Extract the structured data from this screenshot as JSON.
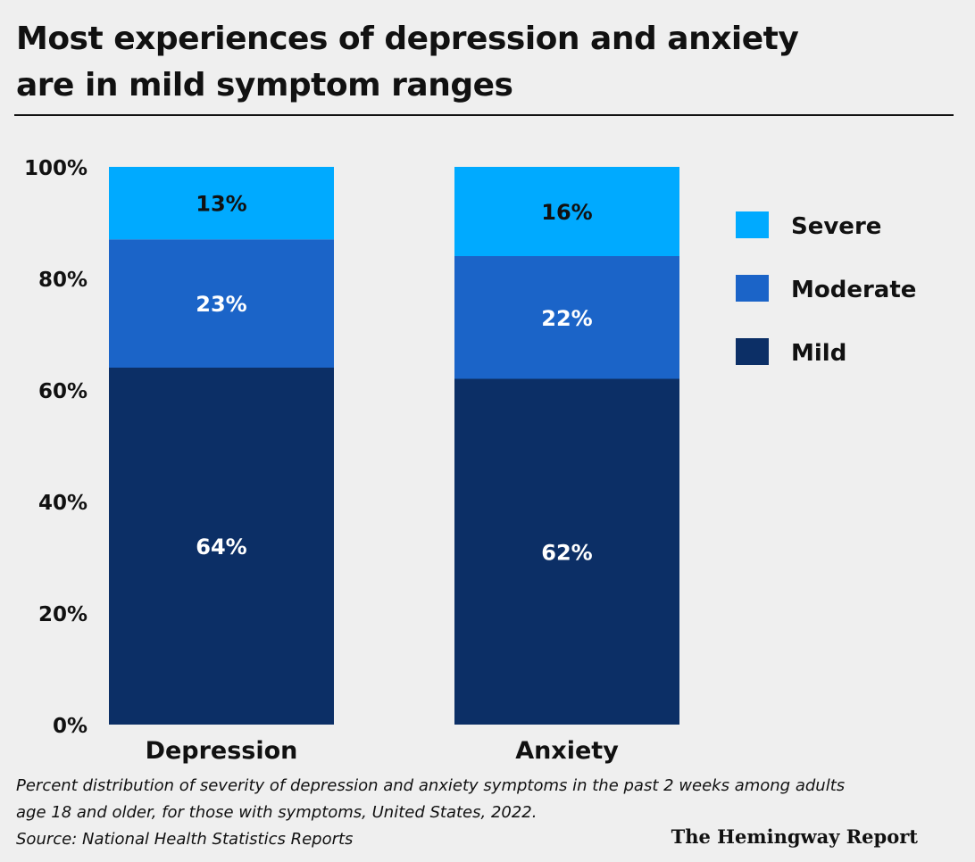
{
  "header": {
    "title_line1": "Most experiences of depression and anxiety",
    "title_line2": "are in mild symptom ranges"
  },
  "chart_data": {
    "type": "bar",
    "stacked": true,
    "title": "Most experiences of depression and anxiety are in mild symptom ranges",
    "categories": [
      "Depression",
      "Anxiety"
    ],
    "series": [
      {
        "name": "Mild",
        "values": [
          64,
          62
        ],
        "color": "#0c2f66",
        "label_color": "#ffffff"
      },
      {
        "name": "Moderate",
        "values": [
          23,
          22
        ],
        "color": "#1b64c8",
        "label_color": "#ffffff"
      },
      {
        "name": "Severe",
        "values": [
          13,
          16
        ],
        "color": "#00aaff",
        "label_color": "#111111"
      }
    ],
    "data_labels": [
      [
        "64%",
        "62%"
      ],
      [
        "23%",
        "22%"
      ],
      [
        "13%",
        "16%"
      ]
    ],
    "legend_order": [
      "Severe",
      "Moderate",
      "Mild"
    ],
    "legend_position": "right",
    "yticks": [
      "0%",
      "20%",
      "40%",
      "60%",
      "80%",
      "100%"
    ],
    "ylim": [
      0,
      100
    ],
    "xlabel": "",
    "ylabel": "",
    "grid": false
  },
  "footer": {
    "note_line1": "Percent distribution of severity of depression and anxiety symptoms in the past  2 weeks among adults",
    "note_line2": "age 18 and older, for those with symptoms, United States, 2022.",
    "source": "Source: National Health Statistics Reports",
    "brand": "The Hemingway Report"
  }
}
